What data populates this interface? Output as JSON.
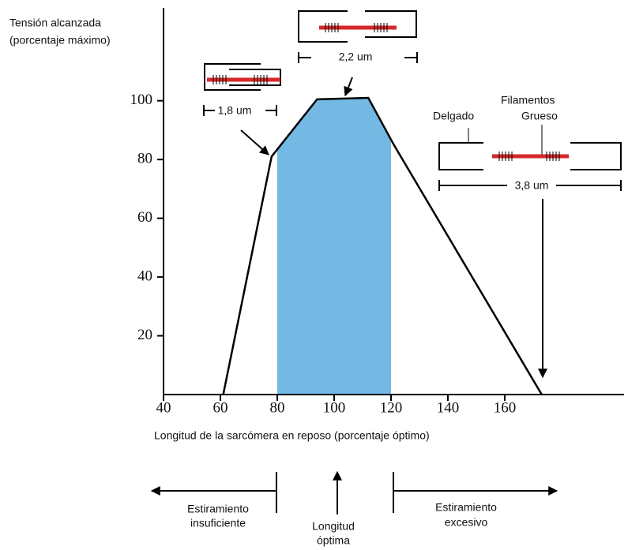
{
  "chart_data": {
    "type": "line",
    "ylabel": [
      "Tensión alcanzada",
      "(porcentaje máximo)"
    ],
    "xlabel": "Longitud de la sarcómera en reposo (porcentaje óptimo)",
    "x": [
      61,
      78,
      94,
      112,
      121,
      173
    ],
    "values": [
      0,
      81,
      100.5,
      101,
      85,
      0
    ],
    "color": "#000000",
    "shaded_region": [
      80,
      120
    ],
    "shade_color": "#74b9e4",
    "xlim": [
      40,
      200
    ],
    "xticks": [
      40,
      60,
      80,
      100,
      120,
      140,
      160
    ],
    "ylim": [
      0,
      130
    ],
    "yticks": [
      20,
      40,
      60,
      80,
      100
    ],
    "annotations": {
      "short": "1,8 um",
      "optimal": "2,2 um",
      "long": "3,8 um",
      "filaments": "Filamentos",
      "thin": "Delgado",
      "thick": "Grueso"
    },
    "regions": {
      "insufficient": [
        "Estiramiento",
        "insuficiente"
      ],
      "optimal": [
        "Longitud",
        "óptima"
      ],
      "excessive": [
        "Estiramiento",
        "excesivo"
      ]
    }
  }
}
